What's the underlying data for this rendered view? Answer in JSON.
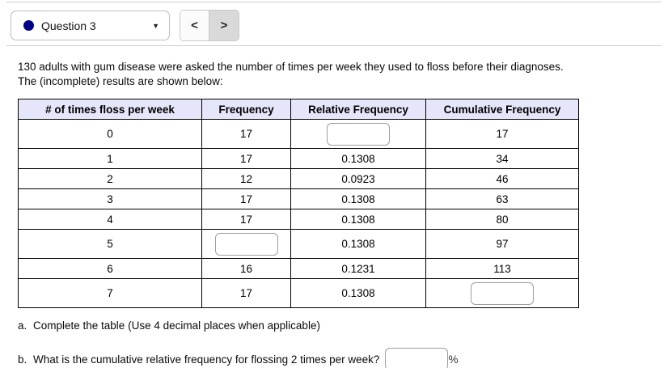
{
  "header": {
    "question_selector": {
      "label": "Question 3",
      "dot_color": "#00008b",
      "caret_icon": "▼"
    },
    "nav": {
      "prev_icon": "<",
      "next_icon": ">"
    }
  },
  "intro_text": "130 adults with gum disease were asked the number of times per week they used to floss before their diagnoses. The (incomplete) results are shown below:",
  "table": {
    "headers": [
      "# of times floss per week",
      "Frequency",
      "Relative Frequency",
      "Cumulative Frequency"
    ],
    "header_bg": "#e6e6fa",
    "rows": [
      {
        "c0": "0",
        "c1": "17",
        "c2": "",
        "c3": "17"
      },
      {
        "c0": "1",
        "c1": "17",
        "c2": "0.1308",
        "c3": "34"
      },
      {
        "c0": "2",
        "c1": "12",
        "c2": "0.0923",
        "c3": "46"
      },
      {
        "c0": "3",
        "c1": "17",
        "c2": "0.1308",
        "c3": "63"
      },
      {
        "c0": "4",
        "c1": "17",
        "c2": "0.1308",
        "c3": "80"
      },
      {
        "c0": "5",
        "c1": "",
        "c2": "0.1308",
        "c3": "97"
      },
      {
        "c0": "6",
        "c1": "16",
        "c2": "0.1231",
        "c3": "113"
      },
      {
        "c0": "7",
        "c1": "17",
        "c2": "0.1308",
        "c3": ""
      }
    ]
  },
  "inputs": {
    "relative_freq_row0": "",
    "freq_row5": "",
    "cumulative_freq_row7": "",
    "question_b": ""
  },
  "questions": {
    "a_letter": "a.",
    "a_text": "Complete the table (Use 4 decimal places when applicable)",
    "b_letter": "b.",
    "b_text": "What is the cumulative relative frequency for flossing 2 times per week?",
    "b_unit": "%"
  }
}
